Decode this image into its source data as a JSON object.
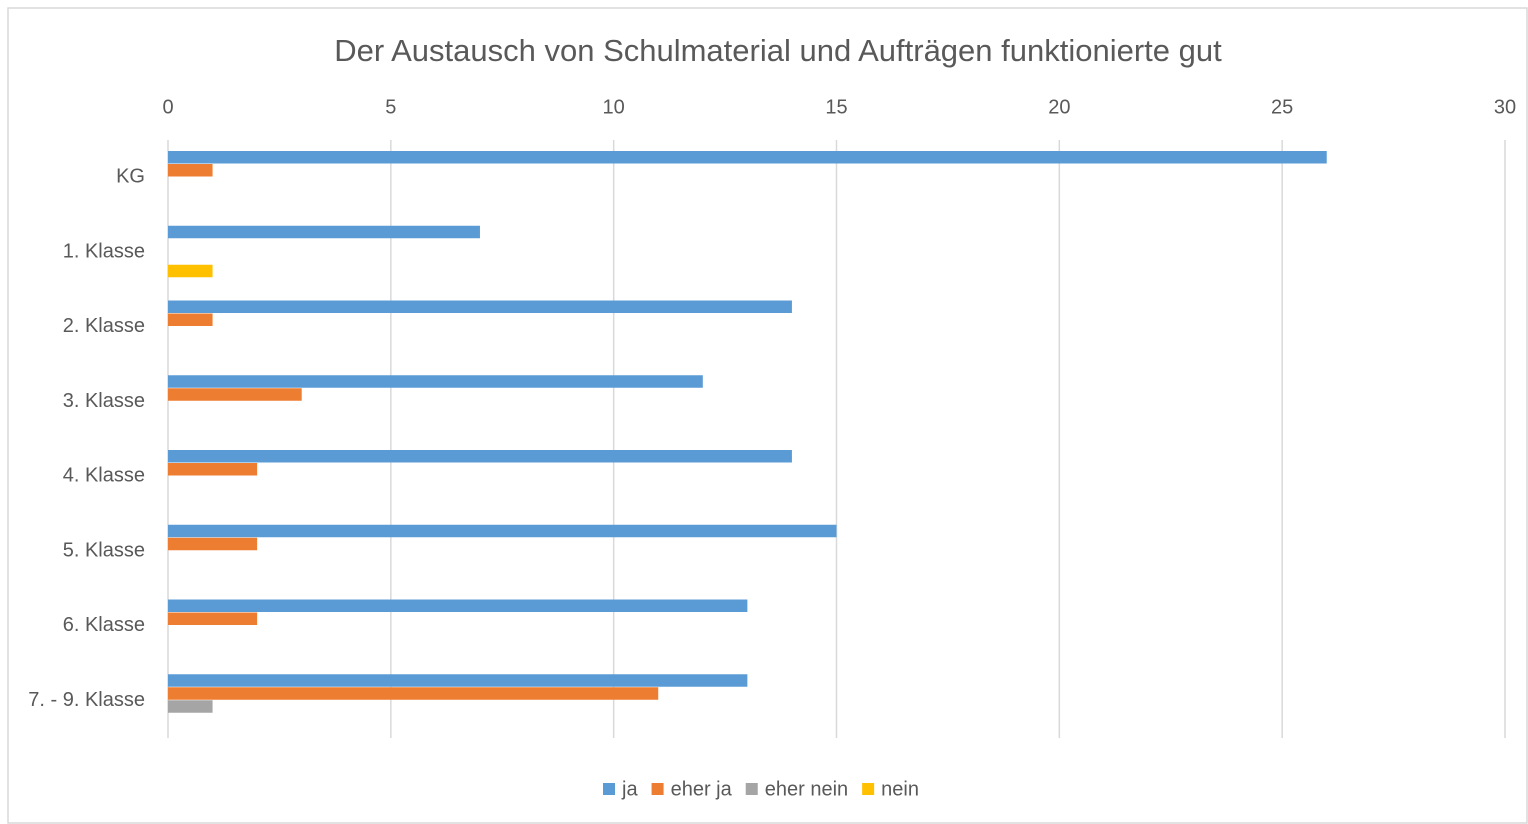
{
  "chart_data": {
    "type": "barh",
    "title": "Der Austausch von Schulmaterial und Aufträgen funktionierte gut",
    "categories": [
      "KG",
      "1. Klasse",
      "2. Klasse",
      "3. Klasse",
      "4. Klasse",
      "5. Klasse",
      "6. Klasse",
      "7. - 9. Klasse"
    ],
    "series": [
      {
        "name": "ja",
        "color": "#5b9bd5",
        "values": [
          26,
          7,
          14,
          12,
          14,
          15,
          13,
          13
        ]
      },
      {
        "name": "eher ja",
        "color": "#ed7d31",
        "values": [
          1,
          0,
          1,
          3,
          2,
          2,
          2,
          11
        ]
      },
      {
        "name": "eher nein",
        "color": "#a5a5a5",
        "values": [
          0,
          0,
          0,
          0,
          0,
          0,
          0,
          1
        ]
      },
      {
        "name": "nein",
        "color": "#ffc000",
        "values": [
          0,
          1,
          0,
          0,
          0,
          0,
          0,
          0
        ]
      }
    ],
    "xlim": [
      0,
      30
    ],
    "xticks": [
      0,
      5,
      10,
      15,
      20,
      25,
      30
    ],
    "grid": true,
    "legend": "bottom"
  }
}
